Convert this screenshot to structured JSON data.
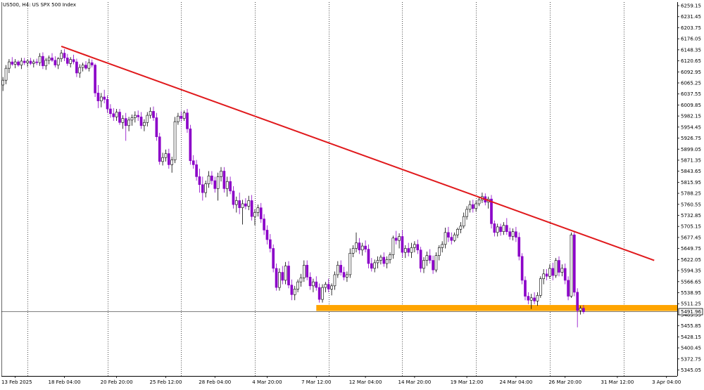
{
  "header": {
    "symbol_label": "US500, H4:  US SPX 500 Index"
  },
  "price_tag": "5491.96",
  "colors": {
    "bull": "#ffffff",
    "bull_outline": "#000000",
    "bear": "#8b00c8",
    "trendline": "#e0191c",
    "support_zone": "#ffa500",
    "grid": "#000000",
    "axis": "#000000",
    "price_line": "#000000"
  },
  "chart_data": {
    "type": "candlestick",
    "title": "US500, H4:  US SPX 500 Index",
    "y_ticks": [
      "6259.15",
      "6231.45",
      "6203.75",
      "6176.05",
      "6148.35",
      "6120.65",
      "6092.95",
      "6065.25",
      "6037.55",
      "6009.85",
      "5982.15",
      "5954.45",
      "5926.75",
      "5899.05",
      "5871.35",
      "5843.65",
      "5815.95",
      "5788.25",
      "5760.55",
      "5732.85",
      "5705.15",
      "5677.45",
      "5649.75",
      "5622.05",
      "5594.35",
      "5566.65",
      "5538.95",
      "5511.25",
      "5483.55",
      "5455.85",
      "5428.15",
      "5400.45",
      "5372.75",
      "5345.05"
    ],
    "x_ticks": [
      "13 Feb 2025",
      "18 Feb 04:00",
      "20 Feb 20:00",
      "25 Feb 12:00",
      "28 Feb 04:00",
      "4 Mar 20:00",
      "7 Mar 12:00",
      "12 Mar 04:00",
      "14 Mar 20:00",
      "19 Mar 12:00",
      "24 Mar 04:00",
      "26 Mar 20:00",
      "31 Mar 12:00",
      "3 Apr 04:00"
    ],
    "ylim": [
      5330,
      6268
    ],
    "x_range": [
      0,
      220
    ],
    "grid_bars": [
      8,
      34,
      58,
      82,
      106,
      130,
      154,
      178,
      202
    ],
    "trendline": {
      "from": [
        19,
        6157
      ],
      "to": [
        212,
        5620
      ]
    },
    "support_zone": {
      "from_bar": 102,
      "price_high": 5508,
      "price_low": 5493
    },
    "current_price": 5491.96,
    "ohlc": [
      [
        6060,
        6080,
        6045,
        6072
      ],
      [
        6072,
        6110,
        6062,
        6102
      ],
      [
        6102,
        6125,
        6090,
        6118
      ],
      [
        6118,
        6130,
        6108,
        6112
      ],
      [
        6112,
        6125,
        6102,
        6118
      ],
      [
        6118,
        6122,
        6106,
        6110
      ],
      [
        6110,
        6128,
        6100,
        6120
      ],
      [
        6120,
        6128,
        6110,
        6116
      ],
      [
        6116,
        6124,
        6106,
        6120
      ],
      [
        6120,
        6128,
        6110,
        6114
      ],
      [
        6114,
        6124,
        6104,
        6118
      ],
      [
        6118,
        6126,
        6110,
        6116
      ],
      [
        6116,
        6140,
        6108,
        6132
      ],
      [
        6132,
        6142,
        6100,
        6108
      ],
      [
        6108,
        6128,
        6098,
        6122
      ],
      [
        6122,
        6134,
        6112,
        6128
      ],
      [
        6128,
        6140,
        6118,
        6122
      ],
      [
        6122,
        6132,
        6104,
        6110
      ],
      [
        6110,
        6130,
        6100,
        6126
      ],
      [
        6126,
        6148,
        6118,
        6140
      ],
      [
        6140,
        6150,
        6120,
        6128
      ],
      [
        6128,
        6138,
        6108,
        6114
      ],
      [
        6114,
        6130,
        6104,
        6124
      ],
      [
        6124,
        6136,
        6112,
        6118
      ],
      [
        6118,
        6126,
        6080,
        6090
      ],
      [
        6090,
        6112,
        6078,
        6104
      ],
      [
        6104,
        6116,
        6094,
        6110
      ],
      [
        6110,
        6120,
        6098,
        6102
      ],
      [
        6102,
        6126,
        6094,
        6116
      ],
      [
        6116,
        6124,
        6104,
        6110
      ],
      [
        6110,
        6114,
        6030,
        6040
      ],
      [
        6040,
        6060,
        6002,
        6020
      ],
      [
        6020,
        6040,
        6004,
        6030
      ],
      [
        6030,
        6048,
        6014,
        6024
      ],
      [
        6024,
        6034,
        5990,
        6000
      ],
      [
        6000,
        6012,
        5978,
        5988
      ],
      [
        5988,
        6002,
        5970,
        5980
      ],
      [
        5980,
        6000,
        5970,
        5992
      ],
      [
        5992,
        6000,
        5960,
        5966
      ],
      [
        5966,
        5984,
        5950,
        5976
      ],
      [
        5976,
        5990,
        5920,
        5958
      ],
      [
        5958,
        5980,
        5944,
        5972
      ],
      [
        5972,
        5986,
        5958,
        5978
      ],
      [
        5978,
        5994,
        5966,
        5984
      ],
      [
        5984,
        5996,
        5970,
        5980
      ],
      [
        5980,
        5992,
        5950,
        5958
      ],
      [
        5958,
        5974,
        5944,
        5966
      ],
      [
        5966,
        5992,
        5956,
        5984
      ],
      [
        5984,
        6004,
        5976,
        5994
      ],
      [
        5994,
        6006,
        5970,
        5978
      ],
      [
        5978,
        5990,
        5920,
        5930
      ],
      [
        5930,
        5940,
        5860,
        5868
      ],
      [
        5868,
        5890,
        5858,
        5878
      ],
      [
        5878,
        5898,
        5868,
        5888
      ],
      [
        5888,
        5900,
        5850,
        5860
      ],
      [
        5860,
        5880,
        5840,
        5872
      ],
      [
        5872,
        5980,
        5864,
        5968
      ],
      [
        5968,
        5990,
        5960,
        5982
      ],
      [
        5982,
        5994,
        5968,
        5976
      ],
      [
        5976,
        5996,
        5970,
        5990
      ],
      [
        5990,
        6000,
        5940,
        5950
      ],
      [
        5950,
        5960,
        5860,
        5870
      ],
      [
        5870,
        5884,
        5850,
        5860
      ],
      [
        5860,
        5872,
        5820,
        5830
      ],
      [
        5830,
        5850,
        5790,
        5810
      ],
      [
        5810,
        5830,
        5770,
        5790
      ],
      [
        5790,
        5820,
        5778,
        5812
      ],
      [
        5812,
        5844,
        5802,
        5832
      ],
      [
        5832,
        5844,
        5810,
        5820
      ],
      [
        5820,
        5830,
        5790,
        5800
      ],
      [
        5800,
        5840,
        5770,
        5830
      ],
      [
        5830,
        5854,
        5818,
        5844
      ],
      [
        5844,
        5854,
        5790,
        5800
      ],
      [
        5800,
        5830,
        5780,
        5818
      ],
      [
        5818,
        5830,
        5786,
        5794
      ],
      [
        5794,
        5806,
        5750,
        5760
      ],
      [
        5760,
        5780,
        5740,
        5770
      ],
      [
        5770,
        5790,
        5736,
        5752
      ],
      [
        5752,
        5772,
        5710,
        5762
      ],
      [
        5762,
        5776,
        5748,
        5756
      ],
      [
        5756,
        5782,
        5746,
        5770
      ],
      [
        5770,
        5784,
        5720,
        5730
      ],
      [
        5730,
        5748,
        5708,
        5740
      ],
      [
        5740,
        5760,
        5730,
        5752
      ],
      [
        5752,
        5764,
        5714,
        5724
      ],
      [
        5724,
        5736,
        5684,
        5696
      ],
      [
        5696,
        5708,
        5660,
        5672
      ],
      [
        5672,
        5686,
        5640,
        5650
      ],
      [
        5650,
        5660,
        5590,
        5600
      ],
      [
        5600,
        5612,
        5544,
        5552
      ],
      [
        5552,
        5600,
        5544,
        5590
      ],
      [
        5590,
        5606,
        5560,
        5570
      ],
      [
        5570,
        5616,
        5560,
        5606
      ],
      [
        5606,
        5618,
        5550,
        5558
      ],
      [
        5558,
        5572,
        5520,
        5534
      ],
      [
        5534,
        5556,
        5520,
        5548
      ],
      [
        5548,
        5572,
        5540,
        5566
      ],
      [
        5566,
        5586,
        5554,
        5576
      ],
      [
        5576,
        5620,
        5566,
        5608
      ],
      [
        5608,
        5620,
        5570,
        5578
      ],
      [
        5578,
        5590,
        5546,
        5556
      ],
      [
        5556,
        5574,
        5540,
        5566
      ],
      [
        5566,
        5580,
        5544,
        5552
      ],
      [
        5552,
        5562,
        5514,
        5522
      ],
      [
        5522,
        5560,
        5514,
        5552
      ],
      [
        5552,
        5566,
        5540,
        5560
      ],
      [
        5560,
        5574,
        5540,
        5548
      ],
      [
        5548,
        5562,
        5532,
        5556
      ],
      [
        5556,
        5592,
        5546,
        5584
      ],
      [
        5584,
        5618,
        5576,
        5608
      ],
      [
        5608,
        5620,
        5582,
        5590
      ],
      [
        5590,
        5604,
        5570,
        5578
      ],
      [
        5578,
        5592,
        5566,
        5584
      ],
      [
        5584,
        5650,
        5576,
        5638
      ],
      [
        5638,
        5658,
        5628,
        5650
      ],
      [
        5650,
        5690,
        5640,
        5664
      ],
      [
        5664,
        5676,
        5636,
        5646
      ],
      [
        5646,
        5664,
        5632,
        5656
      ],
      [
        5656,
        5670,
        5640,
        5648
      ],
      [
        5648,
        5660,
        5600,
        5612
      ],
      [
        5612,
        5626,
        5592,
        5600
      ],
      [
        5600,
        5622,
        5590,
        5614
      ],
      [
        5614,
        5630,
        5600,
        5620
      ],
      [
        5620,
        5634,
        5610,
        5628
      ],
      [
        5628,
        5640,
        5604,
        5612
      ],
      [
        5612,
        5630,
        5600,
        5622
      ],
      [
        5622,
        5640,
        5612,
        5634
      ],
      [
        5634,
        5682,
        5624,
        5676
      ],
      [
        5676,
        5694,
        5660,
        5670
      ],
      [
        5670,
        5688,
        5650,
        5680
      ],
      [
        5680,
        5696,
        5628,
        5640
      ],
      [
        5640,
        5658,
        5626,
        5650
      ],
      [
        5650,
        5664,
        5630,
        5640
      ],
      [
        5640,
        5664,
        5626,
        5652
      ],
      [
        5652,
        5668,
        5640,
        5660
      ],
      [
        5660,
        5672,
        5636,
        5646
      ],
      [
        5646,
        5654,
        5590,
        5600
      ],
      [
        5600,
        5628,
        5588,
        5620
      ],
      [
        5620,
        5642,
        5606,
        5632
      ],
      [
        5632,
        5648,
        5612,
        5620
      ],
      [
        5620,
        5632,
        5586,
        5596
      ],
      [
        5596,
        5640,
        5590,
        5632
      ],
      [
        5632,
        5658,
        5620,
        5652
      ],
      [
        5652,
        5668,
        5640,
        5660
      ],
      [
        5660,
        5702,
        5650,
        5690
      ],
      [
        5690,
        5704,
        5666,
        5678
      ],
      [
        5678,
        5690,
        5660,
        5670
      ],
      [
        5670,
        5690,
        5666,
        5684
      ],
      [
        5684,
        5702,
        5676,
        5698
      ],
      [
        5698,
        5716,
        5688,
        5706
      ],
      [
        5706,
        5740,
        5700,
        5730
      ],
      [
        5730,
        5756,
        5722,
        5748
      ],
      [
        5748,
        5770,
        5740,
        5760
      ],
      [
        5760,
        5772,
        5740,
        5750
      ],
      [
        5750,
        5770,
        5742,
        5762
      ],
      [
        5762,
        5780,
        5756,
        5772
      ],
      [
        5772,
        5790,
        5764,
        5780
      ],
      [
        5780,
        5788,
        5758,
        5766
      ],
      [
        5766,
        5780,
        5750,
        5774
      ],
      [
        5774,
        5784,
        5700,
        5712
      ],
      [
        5712,
        5720,
        5680,
        5690
      ],
      [
        5690,
        5712,
        5680,
        5704
      ],
      [
        5704,
        5712,
        5682,
        5692
      ],
      [
        5692,
        5716,
        5684,
        5708
      ],
      [
        5708,
        5726,
        5684,
        5692
      ],
      [
        5692,
        5702,
        5672,
        5680
      ],
      [
        5680,
        5700,
        5670,
        5692
      ],
      [
        5692,
        5704,
        5666,
        5678
      ],
      [
        5678,
        5690,
        5620,
        5630
      ],
      [
        5630,
        5638,
        5560,
        5570
      ],
      [
        5570,
        5580,
        5520,
        5530
      ],
      [
        5530,
        5540,
        5510,
        5520
      ],
      [
        5520,
        5536,
        5498,
        5526
      ],
      [
        5526,
        5540,
        5510,
        5518
      ],
      [
        5518,
        5540,
        5506,
        5532
      ],
      [
        5532,
        5580,
        5526,
        5574
      ],
      [
        5574,
        5598,
        5560,
        5586
      ],
      [
        5586,
        5598,
        5570,
        5580
      ],
      [
        5580,
        5610,
        5574,
        5600
      ],
      [
        5600,
        5614,
        5570,
        5582
      ],
      [
        5582,
        5626,
        5576,
        5620
      ],
      [
        5620,
        5630,
        5580,
        5590
      ],
      [
        5590,
        5610,
        5580,
        5600
      ],
      [
        5600,
        5612,
        5560,
        5570
      ],
      [
        5570,
        5580,
        5520,
        5530
      ],
      [
        5530,
        5690,
        5526,
        5684
      ],
      [
        5684,
        5694,
        5530,
        5540
      ],
      [
        5540,
        5550,
        5452,
        5494
      ],
      [
        5494,
        5506,
        5484,
        5500
      ],
      [
        5500,
        5508,
        5486,
        5491
      ]
    ]
  }
}
